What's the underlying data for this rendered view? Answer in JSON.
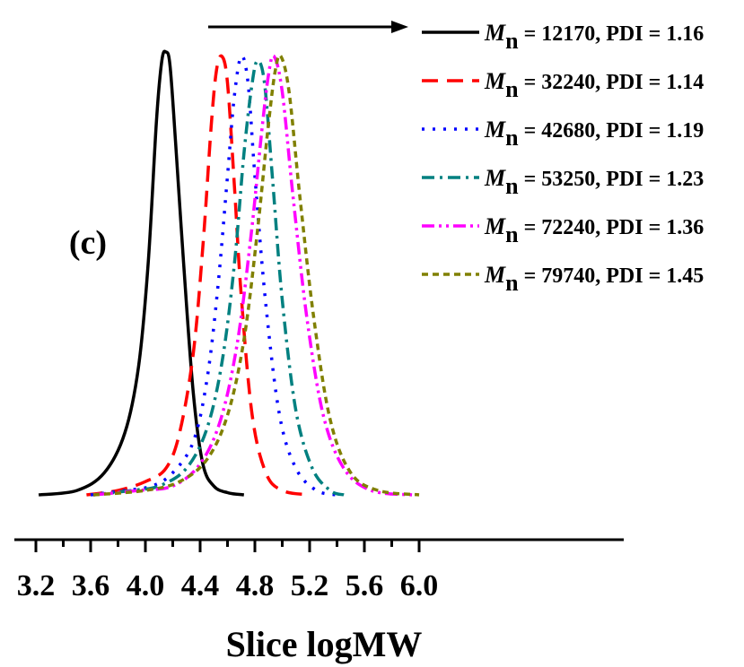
{
  "chart_data": {
    "type": "line",
    "panel_label": "(c)",
    "xlabel": "Slice logMW",
    "ylabel": "",
    "xlim": [
      3.1,
      6.2
    ],
    "xticks": [
      "3.2",
      "3.6",
      "4.0",
      "4.4",
      "4.8",
      "5.2",
      "5.6",
      "6.0"
    ],
    "y_axis_shown": false,
    "legend_position": "top-right",
    "arrow": {
      "direction": "right"
    },
    "series": [
      {
        "name_prefix": "M",
        "name_sub": "n",
        "name_rest": " = 12170, PDI = 1.16",
        "color": "#000000",
        "dash": "solid",
        "x": [
          3.22,
          3.5,
          3.7,
          3.85,
          3.95,
          4.02,
          4.08,
          4.12,
          4.15,
          4.18,
          4.22,
          4.28,
          4.35,
          4.42,
          4.5,
          4.6,
          4.72
        ],
        "y": [
          0.0,
          0.01,
          0.05,
          0.14,
          0.29,
          0.52,
          0.84,
          0.98,
          1.0,
          0.97,
          0.8,
          0.52,
          0.23,
          0.07,
          0.02,
          0.005,
          0.0
        ]
      },
      {
        "name_prefix": "M",
        "name_sub": "n",
        "name_rest": " = 32240, PDI = 1.14",
        "color": "#ff0000",
        "dash": "long-dash",
        "x": [
          3.57,
          3.8,
          4.0,
          4.15,
          4.25,
          4.35,
          4.42,
          4.48,
          4.52,
          4.56,
          4.6,
          4.65,
          4.7,
          4.78,
          4.88,
          5.0,
          5.2
        ],
        "y": [
          0.0,
          0.01,
          0.03,
          0.06,
          0.14,
          0.32,
          0.56,
          0.83,
          0.96,
          0.99,
          0.93,
          0.7,
          0.45,
          0.18,
          0.05,
          0.01,
          0.0
        ]
      },
      {
        "name_prefix": "M",
        "name_sub": "n",
        "name_rest": " = 42680, PDI = 1.19",
        "color": "#0000ff",
        "dash": "dot",
        "x": [
          3.6,
          3.85,
          4.05,
          4.2,
          4.35,
          4.45,
          4.53,
          4.6,
          4.65,
          4.7,
          4.75,
          4.8,
          4.88,
          4.98,
          5.1,
          5.25,
          5.4
        ],
        "y": [
          0.0,
          0.01,
          0.02,
          0.05,
          0.12,
          0.26,
          0.47,
          0.72,
          0.9,
          0.99,
          0.93,
          0.72,
          0.43,
          0.18,
          0.06,
          0.01,
          0.0
        ]
      },
      {
        "name_prefix": "M",
        "name_sub": "n",
        "name_rest": " = 53250, PDI = 1.23",
        "color": "#008080",
        "dash": "dash-dot",
        "x": [
          3.62,
          3.9,
          4.1,
          4.3,
          4.45,
          4.56,
          4.65,
          4.72,
          4.78,
          4.82,
          4.87,
          4.93,
          5.0,
          5.1,
          5.22,
          5.35,
          5.45
        ],
        "y": [
          0.0,
          0.01,
          0.02,
          0.06,
          0.15,
          0.3,
          0.52,
          0.77,
          0.93,
          0.98,
          0.93,
          0.71,
          0.44,
          0.19,
          0.06,
          0.01,
          0.0
        ]
      },
      {
        "name_prefix": "M",
        "name_sub": "n",
        "name_rest": " = 72240, PDI = 1.36",
        "color": "#ff00ff",
        "dash": "dash-dot-dot",
        "x": [
          3.62,
          3.95,
          4.2,
          4.4,
          4.55,
          4.67,
          4.77,
          4.85,
          4.9,
          4.94,
          5.0,
          5.08,
          5.18,
          5.3,
          5.45,
          5.65,
          5.95
        ],
        "y": [
          0.0,
          0.01,
          0.02,
          0.07,
          0.17,
          0.34,
          0.58,
          0.82,
          0.95,
          0.99,
          0.91,
          0.67,
          0.4,
          0.18,
          0.06,
          0.01,
          0.0
        ]
      },
      {
        "name_prefix": "M",
        "name_sub": "n",
        "name_rest": " = 79740, PDI = 1.45",
        "color": "#808000",
        "dash": "short-dash",
        "x": [
          3.62,
          4.0,
          4.25,
          4.45,
          4.6,
          4.72,
          4.82,
          4.9,
          4.95,
          4.99,
          5.05,
          5.13,
          5.23,
          5.35,
          5.5,
          5.7,
          6.0
        ],
        "y": [
          0.0,
          0.01,
          0.03,
          0.08,
          0.18,
          0.35,
          0.6,
          0.84,
          0.96,
          0.99,
          0.91,
          0.67,
          0.4,
          0.17,
          0.05,
          0.01,
          0.0
        ]
      }
    ]
  }
}
